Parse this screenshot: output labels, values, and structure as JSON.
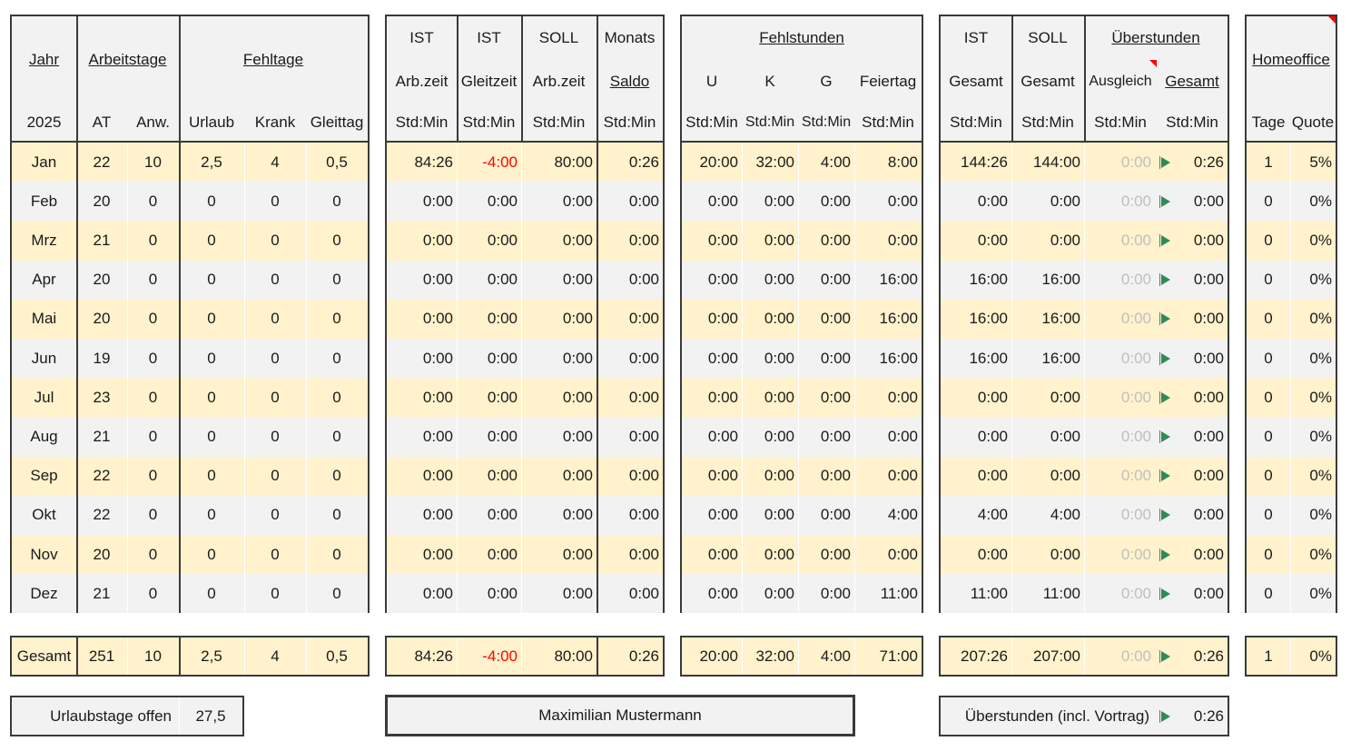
{
  "header": {
    "jahr": "Jahr",
    "arbeitstage": "Arbeitstage",
    "fehltage": "Fehltage",
    "year": "2025",
    "at": "AT",
    "anw": "Anw.",
    "urlaub": "Urlaub",
    "krank": "Krank",
    "gleittag": "Gleittag",
    "ist": "IST",
    "soll": "SOLL",
    "monats": "Monats",
    "arbzeit": "Arb.zeit",
    "gleitzeit": "Gleitzeit",
    "saldo": "Saldo",
    "stdmin": "Std:Min",
    "fehlstunden": "Fehlstunden",
    "u": "U",
    "k": "K",
    "g": "G",
    "feiertag": "Feiertag",
    "gesamt": "Gesamt",
    "ueberstunden": "Überstunden",
    "ausgleich": "Ausgleich",
    "homeoffice": "Homeoffice",
    "tage": "Tage",
    "quote": "Quote"
  },
  "months": [
    {
      "m": "Jan",
      "at": "22",
      "anw": "10",
      "urlaub": "2,5",
      "krank": "4",
      "gleittag": "0,5",
      "ist": "84:26",
      "gleit": "-4:00",
      "soll": "80:00",
      "saldo": "0:26",
      "u": "20:00",
      "k": "32:00",
      "g": "4:00",
      "feiertag": "8:00",
      "ist_ges": "144:26",
      "soll_ges": "144:00",
      "ausgleich": "0:00",
      "ue_ges": "0:26",
      "tage": "1",
      "quote": "5%"
    },
    {
      "m": "Feb",
      "at": "20",
      "anw": "0",
      "urlaub": "0",
      "krank": "0",
      "gleittag": "0",
      "ist": "0:00",
      "gleit": "0:00",
      "soll": "0:00",
      "saldo": "0:00",
      "u": "0:00",
      "k": "0:00",
      "g": "0:00",
      "feiertag": "0:00",
      "ist_ges": "0:00",
      "soll_ges": "0:00",
      "ausgleich": "0:00",
      "ue_ges": "0:00",
      "tage": "0",
      "quote": "0%"
    },
    {
      "m": "Mrz",
      "at": "21",
      "anw": "0",
      "urlaub": "0",
      "krank": "0",
      "gleittag": "0",
      "ist": "0:00",
      "gleit": "0:00",
      "soll": "0:00",
      "saldo": "0:00",
      "u": "0:00",
      "k": "0:00",
      "g": "0:00",
      "feiertag": "0:00",
      "ist_ges": "0:00",
      "soll_ges": "0:00",
      "ausgleich": "0:00",
      "ue_ges": "0:00",
      "tage": "0",
      "quote": "0%"
    },
    {
      "m": "Apr",
      "at": "20",
      "anw": "0",
      "urlaub": "0",
      "krank": "0",
      "gleittag": "0",
      "ist": "0:00",
      "gleit": "0:00",
      "soll": "0:00",
      "saldo": "0:00",
      "u": "0:00",
      "k": "0:00",
      "g": "0:00",
      "feiertag": "16:00",
      "ist_ges": "16:00",
      "soll_ges": "16:00",
      "ausgleich": "0:00",
      "ue_ges": "0:00",
      "tage": "0",
      "quote": "0%"
    },
    {
      "m": "Mai",
      "at": "20",
      "anw": "0",
      "urlaub": "0",
      "krank": "0",
      "gleittag": "0",
      "ist": "0:00",
      "gleit": "0:00",
      "soll": "0:00",
      "saldo": "0:00",
      "u": "0:00",
      "k": "0:00",
      "g": "0:00",
      "feiertag": "16:00",
      "ist_ges": "16:00",
      "soll_ges": "16:00",
      "ausgleich": "0:00",
      "ue_ges": "0:00",
      "tage": "0",
      "quote": "0%"
    },
    {
      "m": "Jun",
      "at": "19",
      "anw": "0",
      "urlaub": "0",
      "krank": "0",
      "gleittag": "0",
      "ist": "0:00",
      "gleit": "0:00",
      "soll": "0:00",
      "saldo": "0:00",
      "u": "0:00",
      "k": "0:00",
      "g": "0:00",
      "feiertag": "16:00",
      "ist_ges": "16:00",
      "soll_ges": "16:00",
      "ausgleich": "0:00",
      "ue_ges": "0:00",
      "tage": "0",
      "quote": "0%"
    },
    {
      "m": "Jul",
      "at": "23",
      "anw": "0",
      "urlaub": "0",
      "krank": "0",
      "gleittag": "0",
      "ist": "0:00",
      "gleit": "0:00",
      "soll": "0:00",
      "saldo": "0:00",
      "u": "0:00",
      "k": "0:00",
      "g": "0:00",
      "feiertag": "0:00",
      "ist_ges": "0:00",
      "soll_ges": "0:00",
      "ausgleich": "0:00",
      "ue_ges": "0:00",
      "tage": "0",
      "quote": "0%"
    },
    {
      "m": "Aug",
      "at": "21",
      "anw": "0",
      "urlaub": "0",
      "krank": "0",
      "gleittag": "0",
      "ist": "0:00",
      "gleit": "0:00",
      "soll": "0:00",
      "saldo": "0:00",
      "u": "0:00",
      "k": "0:00",
      "g": "0:00",
      "feiertag": "0:00",
      "ist_ges": "0:00",
      "soll_ges": "0:00",
      "ausgleich": "0:00",
      "ue_ges": "0:00",
      "tage": "0",
      "quote": "0%"
    },
    {
      "m": "Sep",
      "at": "22",
      "anw": "0",
      "urlaub": "0",
      "krank": "0",
      "gleittag": "0",
      "ist": "0:00",
      "gleit": "0:00",
      "soll": "0:00",
      "saldo": "0:00",
      "u": "0:00",
      "k": "0:00",
      "g": "0:00",
      "feiertag": "0:00",
      "ist_ges": "0:00",
      "soll_ges": "0:00",
      "ausgleich": "0:00",
      "ue_ges": "0:00",
      "tage": "0",
      "quote": "0%"
    },
    {
      "m": "Okt",
      "at": "22",
      "anw": "0",
      "urlaub": "0",
      "krank": "0",
      "gleittag": "0",
      "ist": "0:00",
      "gleit": "0:00",
      "soll": "0:00",
      "saldo": "0:00",
      "u": "0:00",
      "k": "0:00",
      "g": "0:00",
      "feiertag": "4:00",
      "ist_ges": "4:00",
      "soll_ges": "4:00",
      "ausgleich": "0:00",
      "ue_ges": "0:00",
      "tage": "0",
      "quote": "0%"
    },
    {
      "m": "Nov",
      "at": "20",
      "anw": "0",
      "urlaub": "0",
      "krank": "0",
      "gleittag": "0",
      "ist": "0:00",
      "gleit": "0:00",
      "soll": "0:00",
      "saldo": "0:00",
      "u": "0:00",
      "k": "0:00",
      "g": "0:00",
      "feiertag": "0:00",
      "ist_ges": "0:00",
      "soll_ges": "0:00",
      "ausgleich": "0:00",
      "ue_ges": "0:00",
      "tage": "0",
      "quote": "0%"
    },
    {
      "m": "Dez",
      "at": "21",
      "anw": "0",
      "urlaub": "0",
      "krank": "0",
      "gleittag": "0",
      "ist": "0:00",
      "gleit": "0:00",
      "soll": "0:00",
      "saldo": "0:00",
      "u": "0:00",
      "k": "0:00",
      "g": "0:00",
      "feiertag": "11:00",
      "ist_ges": "11:00",
      "soll_ges": "11:00",
      "ausgleich": "0:00",
      "ue_ges": "0:00",
      "tage": "0",
      "quote": "0%"
    }
  ],
  "totals": {
    "label": "Gesamt",
    "at": "251",
    "anw": "10",
    "urlaub": "2,5",
    "krank": "4",
    "gleittag": "0,5",
    "ist": "84:26",
    "gleit": "-4:00",
    "soll": "80:00",
    "saldo": "0:26",
    "u": "20:00",
    "k": "32:00",
    "g": "4:00",
    "feiertag": "71:00",
    "ist_ges": "207:26",
    "soll_ges": "207:00",
    "ausgleich": "0:00",
    "ue_ges": "0:26",
    "tage": "1",
    "quote": "0%"
  },
  "footer": {
    "urlaub_label": "Urlaubstage offen",
    "urlaub_value": "27,5",
    "name": "Maximilian Mustermann",
    "ue_label": "Überstunden (incl. Vortrag)",
    "ue_value": "0:26"
  },
  "colors": {
    "row_odd": "#fff2cc",
    "row_even": "#f2f2f2",
    "negative": "#ff0000",
    "flag": "#2e8b57"
  }
}
